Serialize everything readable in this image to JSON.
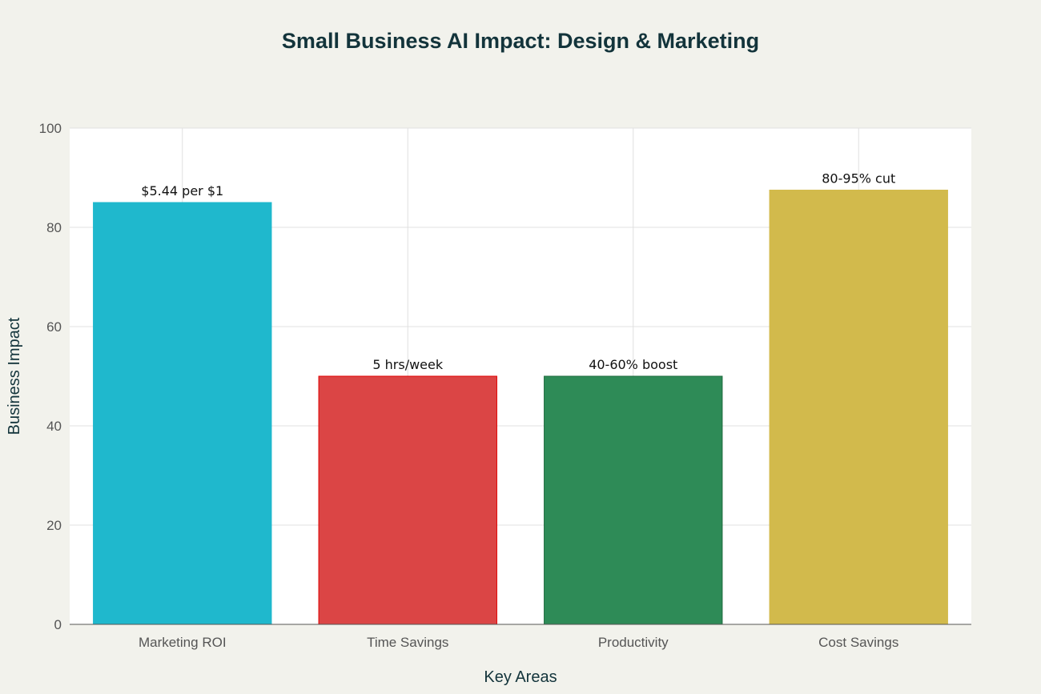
{
  "chart_data": {
    "type": "bar",
    "title": "Small Business AI Impact: Design & Marketing",
    "xlabel": "Key Areas",
    "ylabel": "Business Impact",
    "ylim": [
      0,
      100
    ],
    "yticks": [
      0,
      20,
      40,
      60,
      80,
      100
    ],
    "grid": true,
    "categories": [
      "Marketing ROI",
      "Time Savings",
      "Productivity",
      "Cost Savings"
    ],
    "values": [
      85,
      50,
      50,
      87.5
    ],
    "data_labels": [
      "$5.44 per $1",
      "5 hrs/week",
      "40-60% boost",
      "80-95% cut"
    ],
    "colors": [
      "#1fb8cd",
      "#db4545",
      "#2e8b57",
      "#d2ba4c"
    ],
    "edge_colors": [
      "#1fb8cd",
      "#e00000",
      "#1f6b3e",
      "#d2ba4c"
    ]
  }
}
